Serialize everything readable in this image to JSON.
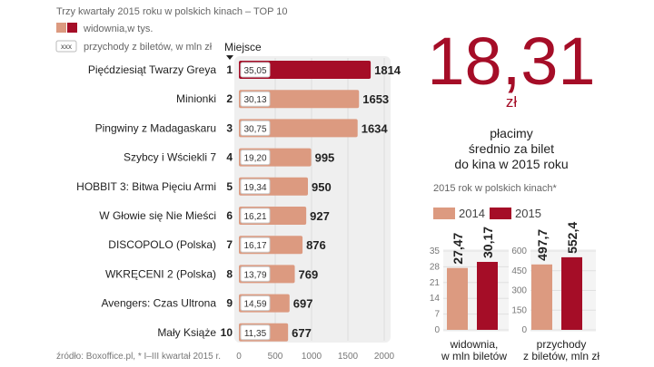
{
  "chart_data": [
    {
      "type": "bar",
      "orientation": "horizontal",
      "title": "Trzy kwartały 2015 roku w polskich kinach – TOP 10",
      "legend": [
        {
          "label": "widownia,w  tys."
        },
        {
          "swatch_text": "xxx",
          "label": "przychody z biletów, w mln zł"
        }
      ],
      "rank_header": "Miejsce",
      "categories": [
        "Pięćdziesiąt Twarzy Greya",
        "Minionki",
        "Pingwiny z Madagaskaru",
        "Szybcy i Wściekli 7",
        "HOBBIT 3: Bitwa Pięciu Armi",
        "W Głowie się Nie Mieści",
        "DISCOPOLO (Polska)",
        "WKRĘCENI 2 (Polska)",
        "Avengers: Czas Ultrona",
        "Mały Książe"
      ],
      "ranks": [
        "1",
        "2",
        "3",
        "4",
        "5",
        "6",
        "7",
        "8",
        "9",
        "10"
      ],
      "values": [
        1814,
        1653,
        1634,
        995,
        950,
        927,
        876,
        769,
        697,
        677
      ],
      "value_labels": [
        "1814",
        "1653",
        "1634",
        "995",
        "950",
        "927",
        "876",
        "769",
        "697",
        "677"
      ],
      "revenue_labels": [
        "35,05",
        "30,13",
        "30,75",
        "19,20",
        "19,34",
        "16,21",
        "16,17",
        "13,79",
        "14,59",
        "11,35"
      ],
      "xlim": [
        0,
        2000
      ],
      "xticks": [
        "0",
        "500",
        "1000",
        "1500",
        "2000"
      ],
      "source": "źródło: Boxoffice.pl, * I–III kwartał 2015 r.",
      "colors": {
        "highlight": "#a50d27",
        "normal": "#dc9a80",
        "panel": "#efefef"
      }
    },
    {
      "type": "bar",
      "title": "2015 rok w polskich kinach*",
      "legend": [
        "2014",
        "2015"
      ],
      "colors": [
        "#dc9a80",
        "#a50d27"
      ],
      "panels": [
        {
          "xlabel_lines": [
            "widownia,",
            "w mln biletów"
          ],
          "values": [
            27.47,
            30.17
          ],
          "value_labels": [
            "27,47",
            "30,17"
          ],
          "ylim": [
            0,
            35
          ],
          "yticks": [
            "0",
            "7",
            "14",
            "21",
            "28",
            "35"
          ]
        },
        {
          "xlabel_lines": [
            "przychody",
            "z biletów, mln zł"
          ],
          "values": [
            497.7,
            552.4
          ],
          "value_labels": [
            "497,7",
            "552,4"
          ],
          "ylim": [
            0,
            600
          ],
          "yticks": [
            "0",
            "150",
            "300",
            "450",
            "600"
          ]
        }
      ]
    }
  ],
  "headline": {
    "big_number": "18,31",
    "unit": "zł",
    "lines": [
      "płacimy",
      "średnio za bilet",
      "do kina w 2015 roku"
    ]
  }
}
